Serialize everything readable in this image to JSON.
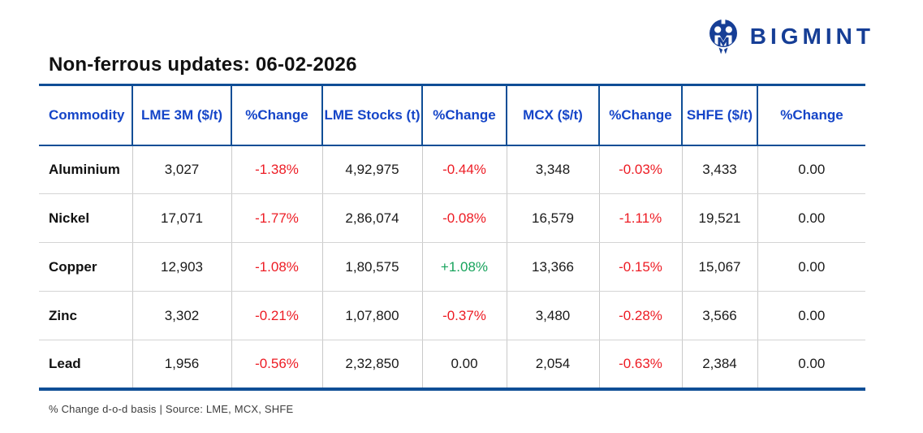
{
  "brand": {
    "name": "BIGMINT",
    "logo_icon": "bigmint-monogram-circle",
    "brand_color": "#163e96"
  },
  "header": {
    "title": "Non-ferrous updates: 06-02-2026"
  },
  "footer": {
    "note": "% Change d-o-d basis | Source: LME, MCX, SHFE"
  },
  "colors": {
    "table_border_navy": "#0f4e96",
    "header_text_blue": "#1545c8",
    "negative_change_red": "#ed1c24",
    "positive_change_green": "#17a35c",
    "row_divider_gray": "#c9c9c9"
  },
  "chart_data": {
    "type": "table",
    "title": "Non-ferrous updates: 06-02-2026",
    "columns": [
      "Commodity",
      "LME 3M ($/t)",
      "%Change",
      "LME Stocks (t)",
      "%Change",
      "MCX ($/t)",
      "%Change",
      "SHFE ($/t)",
      "%Change"
    ],
    "change_column_indexes": [
      2,
      4,
      6,
      8
    ],
    "rows": [
      [
        "Aluminium",
        "3,027",
        "-1.38%",
        "4,92,975",
        "-0.44%",
        "3,348",
        "-0.03%",
        "3,433",
        "0.00"
      ],
      [
        "Nickel",
        "17,071",
        "-1.77%",
        "2,86,074",
        "-0.08%",
        "16,579",
        "-1.11%",
        "19,521",
        "0.00"
      ],
      [
        "Copper",
        "12,903",
        "-1.08%",
        "1,80,575",
        "+1.08%",
        "13,366",
        "-0.15%",
        "15,067",
        "0.00"
      ],
      [
        "Zinc",
        "3,302",
        "-0.21%",
        "1,07,800",
        "-0.37%",
        "3,480",
        "-0.28%",
        "3,566",
        "0.00"
      ],
      [
        "Lead",
        "1,956",
        "-0.56%",
        "2,32,850",
        "0.00",
        "2,054",
        "-0.63%",
        "2,384",
        "0.00"
      ]
    ],
    "notes": "% Change d-o-d basis | Source: LME, MCX, SHFE",
    "layout_hints": {
      "grid": "row and column dividers",
      "header_position": "top",
      "legend": "none"
    }
  }
}
